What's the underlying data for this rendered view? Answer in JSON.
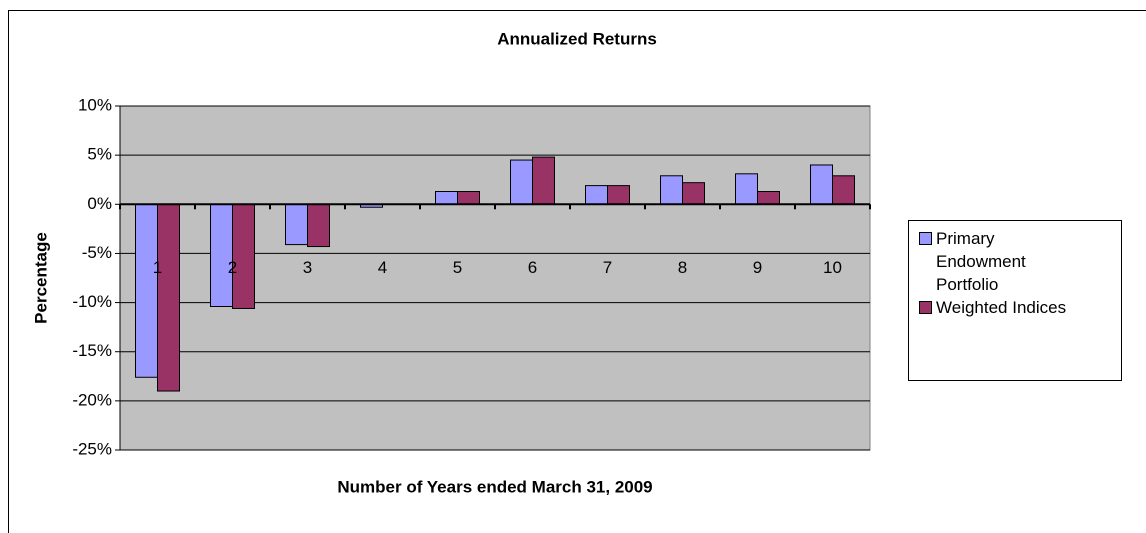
{
  "chart_data": {
    "type": "bar",
    "title": "Annualized Returns",
    "x_label": "Number of Years ended March 31, 2009",
    "y_label": "Percentage",
    "categories": [
      "1",
      "2",
      "3",
      "4",
      "5",
      "6",
      "7",
      "8",
      "9",
      "10"
    ],
    "series": [
      {
        "name": "Primary Endowment Portfolio",
        "color": "#9999ff",
        "values": [
          -17.6,
          -10.4,
          -4.1,
          -0.3,
          1.3,
          4.5,
          1.9,
          2.9,
          3.1,
          4.0
        ]
      },
      {
        "name": "Weighted Indices",
        "color": "#993366",
        "values": [
          -19.0,
          -10.6,
          -4.3,
          0,
          1.3,
          4.8,
          1.9,
          2.2,
          1.3,
          2.9
        ]
      }
    ],
    "ylim": [
      -25,
      10
    ],
    "yticks": [
      {
        "value": 10,
        "label": "10%"
      },
      {
        "value": 5,
        "label": "5%"
      },
      {
        "value": 0,
        "label": "0%"
      },
      {
        "value": -5,
        "label": "-5%"
      },
      {
        "value": -10,
        "label": "-10%"
      },
      {
        "value": -15,
        "label": "-15%"
      },
      {
        "value": -20,
        "label": "-20%"
      },
      {
        "value": -25,
        "label": "-25%"
      }
    ],
    "grid": true,
    "legend_position": "right"
  }
}
